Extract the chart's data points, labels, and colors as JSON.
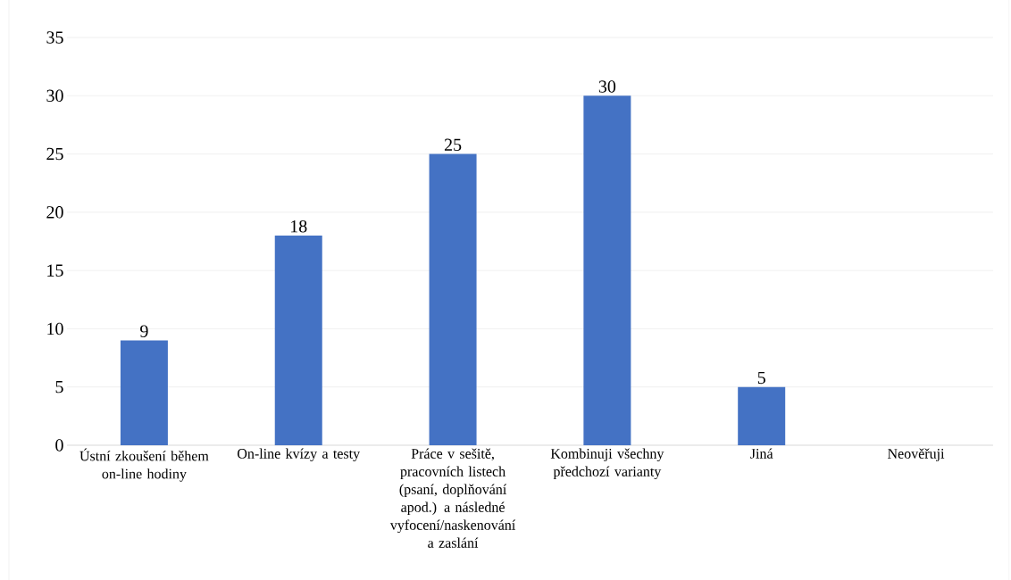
{
  "chart_data": {
    "type": "bar",
    "categories": [
      "Ústní zkoušení během on-line hodiny",
      "On-line kvízy a testy",
      "Práce v sešitě, pracovních listech (psaní, doplňování apod.) a následné vyfocení/naskenování a zaslání",
      "Kombinuji všechny předchozí varianty",
      "Jiná",
      "Neověřuji"
    ],
    "values": [
      9,
      18,
      25,
      30,
      5,
      0
    ],
    "value_labels": [
      "9",
      "18",
      "25",
      "30",
      "5",
      null
    ],
    "color": "#4472c4",
    "ylim": [
      0,
      35
    ],
    "yticks": [
      0,
      5,
      10,
      15,
      20,
      25,
      30,
      35
    ],
    "grid": "y"
  }
}
